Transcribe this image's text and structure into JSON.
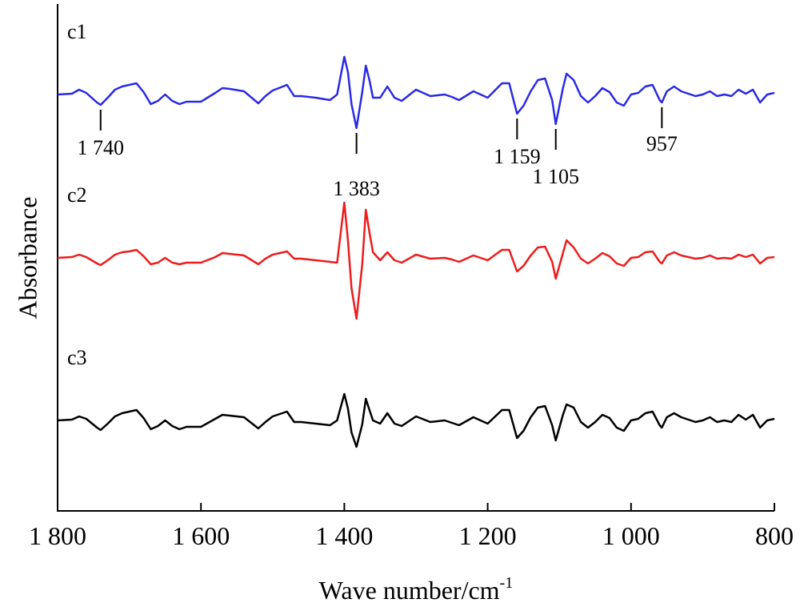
{
  "chart_data": {
    "type": "line",
    "xlabel": "Wave number/cm",
    "xlabel_superscript": "-1",
    "ylabel": "Absorbance",
    "xlim": [
      1800,
      800
    ],
    "ylim": [
      0,
      633
    ],
    "xticks": [
      {
        "value": 1800,
        "label": "1 800"
      },
      {
        "value": 1600,
        "label": "1 600"
      },
      {
        "value": 1400,
        "label": "1 400"
      },
      {
        "value": 1200,
        "label": "1 200"
      },
      {
        "value": 1000,
        "label": "1 000"
      },
      800
    ],
    "x": [
      1800,
      1780,
      1770,
      1760,
      1745,
      1740,
      1730,
      1720,
      1710,
      1700,
      1690,
      1680,
      1670,
      1660,
      1650,
      1640,
      1630,
      1620,
      1600,
      1580,
      1570,
      1560,
      1540,
      1520,
      1510,
      1500,
      1480,
      1470,
      1460,
      1440,
      1420,
      1410,
      1400,
      1395,
      1390,
      1383,
      1375,
      1370,
      1365,
      1360,
      1350,
      1340,
      1330,
      1320,
      1300,
      1280,
      1260,
      1250,
      1240,
      1220,
      1200,
      1180,
      1170,
      1159,
      1150,
      1140,
      1130,
      1120,
      1110,
      1105,
      1095,
      1090,
      1080,
      1070,
      1060,
      1050,
      1040,
      1030,
      1020,
      1010,
      1000,
      990,
      980,
      970,
      960,
      957,
      950,
      940,
      930,
      910,
      900,
      890,
      880,
      870,
      860,
      850,
      840,
      830,
      820,
      810,
      800
    ],
    "series": [
      {
        "name": "c1",
        "color": "#2a2ae6",
        "values": [
          520,
          521,
          526,
          522,
          510,
          507,
          516,
          526,
          530,
          532,
          534,
          523,
          508,
          512,
          520,
          512,
          508,
          511,
          511,
          522,
          528,
          527,
          524,
          509,
          518,
          525,
          532,
          518,
          518,
          516,
          513,
          520,
          567,
          548,
          508,
          478,
          523,
          556,
          538,
          516,
          516,
          530,
          516,
          512,
          526,
          518,
          520,
          517,
          513,
          524,
          516,
          534,
          534,
          496,
          506,
          524,
          538,
          540,
          513,
          483,
          528,
          546,
          538,
          518,
          510,
          518,
          528,
          523,
          510,
          506,
          520,
          522,
          530,
          532,
          513,
          510,
          524,
          530,
          524,
          518,
          520,
          524,
          518,
          520,
          518,
          526,
          521,
          526,
          510,
          520,
          522
        ]
      },
      {
        "name": "c2",
        "color": "#ee1c1c",
        "values": [
          316,
          317,
          320,
          317,
          309,
          307,
          313,
          320,
          323,
          324,
          326,
          318,
          308,
          310,
          316,
          310,
          308,
          310,
          310,
          317,
          322,
          321,
          319,
          308,
          315,
          320,
          324,
          315,
          315,
          313,
          311,
          310,
          385,
          338,
          278,
          240,
          308,
          376,
          348,
          323,
          313,
          323,
          313,
          310,
          320,
          315,
          316,
          314,
          311,
          319,
          313,
          326,
          326,
          299,
          306,
          319,
          329,
          330,
          311,
          290,
          322,
          338,
          329,
          315,
          309,
          315,
          322,
          318,
          309,
          306,
          316,
          317,
          323,
          324,
          311,
          309,
          319,
          323,
          319,
          315,
          316,
          319,
          315,
          316,
          315,
          320,
          317,
          320,
          309,
          316,
          317
        ]
      },
      {
        "name": "c3",
        "color": "#000000",
        "values": [
          113,
          114,
          118,
          115,
          104,
          101,
          109,
          118,
          122,
          124,
          126,
          116,
          102,
          106,
          113,
          106,
          102,
          105,
          105,
          115,
          120,
          119,
          117,
          103,
          111,
          118,
          124,
          111,
          111,
          109,
          107,
          113,
          146,
          128,
          98,
          80,
          108,
          140,
          126,
          113,
          109,
          122,
          109,
          106,
          118,
          111,
          113,
          110,
          107,
          117,
          109,
          126,
          126,
          91,
          100,
          117,
          129,
          131,
          107,
          88,
          120,
          133,
          129,
          111,
          104,
          111,
          120,
          116,
          104,
          100,
          113,
          115,
          122,
          124,
          107,
          104,
          117,
          122,
          117,
          111,
          113,
          117,
          111,
          113,
          111,
          120,
          114,
          120,
          104,
          113,
          115
        ]
      }
    ],
    "annotations": [
      {
        "x": 1740,
        "label": "1 740"
      },
      {
        "x": 1383,
        "label": "1 383"
      },
      {
        "x": 1159,
        "label": "1 159"
      },
      {
        "x": 1105,
        "label": "1 105"
      },
      {
        "x": 957,
        "label": "957"
      }
    ]
  }
}
